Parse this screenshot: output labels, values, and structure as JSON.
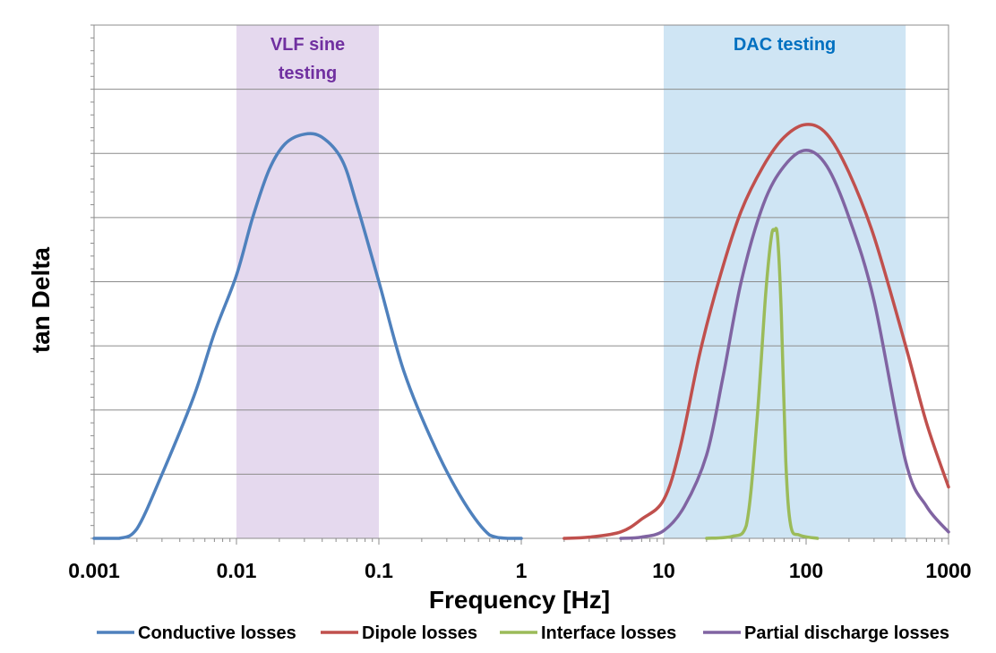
{
  "chart_data": {
    "type": "line",
    "xlabel": "Frequency [Hz]",
    "ylabel": "tan Delta",
    "x_scale": "log",
    "xlim": [
      0.001,
      1000
    ],
    "ylim": [
      0,
      8
    ],
    "x_tick_labels": [
      "0.001",
      "0.01",
      "0.1",
      "1",
      "10",
      "100",
      "1000"
    ],
    "x_ticks": [
      0.001,
      0.01,
      0.1,
      1,
      10,
      100,
      1000
    ],
    "y_gridlines": [
      1,
      2,
      3,
      4,
      5,
      6,
      7
    ],
    "grid": true,
    "legend_position": "bottom",
    "bands": [
      {
        "label_line1": "VLF sine",
        "label_line2": "testing",
        "x_range": [
          0.01,
          0.1
        ],
        "color": "#e5d9ee",
        "text_color": "#7030a0"
      },
      {
        "label_line1": "DAC testing",
        "label_line2": "",
        "x_range": [
          10,
          500
        ],
        "color": "#cfe5f4",
        "text_color": "#0070c0"
      }
    ],
    "series": [
      {
        "name": "Conductive losses",
        "color": "#4f81bd",
        "points": [
          [
            0.001,
            0
          ],
          [
            0.0015,
            0
          ],
          [
            0.002,
            0.15
          ],
          [
            0.003,
            1.0
          ],
          [
            0.005,
            2.2
          ],
          [
            0.007,
            3.2
          ],
          [
            0.01,
            4.1
          ],
          [
            0.013,
            5.0
          ],
          [
            0.017,
            5.75
          ],
          [
            0.022,
            6.15
          ],
          [
            0.03,
            6.3
          ],
          [
            0.04,
            6.25
          ],
          [
            0.055,
            5.9
          ],
          [
            0.07,
            5.2
          ],
          [
            0.1,
            4.0
          ],
          [
            0.15,
            2.6
          ],
          [
            0.25,
            1.4
          ],
          [
            0.4,
            0.55
          ],
          [
            0.6,
            0.05
          ],
          [
            0.8,
            0
          ],
          [
            1,
            0
          ]
        ]
      },
      {
        "name": "Dipole losses",
        "color": "#c0504d",
        "points": [
          [
            2,
            0
          ],
          [
            3,
            0.02
          ],
          [
            5,
            0.1
          ],
          [
            7,
            0.3
          ],
          [
            10,
            0.6
          ],
          [
            13,
            1.4
          ],
          [
            18,
            2.9
          ],
          [
            25,
            4.1
          ],
          [
            35,
            5.1
          ],
          [
            50,
            5.8
          ],
          [
            70,
            6.25
          ],
          [
            100,
            6.45
          ],
          [
            140,
            6.3
          ],
          [
            200,
            5.7
          ],
          [
            300,
            4.7
          ],
          [
            500,
            3.0
          ],
          [
            700,
            1.8
          ],
          [
            1000,
            0.8
          ]
        ]
      },
      {
        "name": "Interface losses",
        "color": "#9bbb59",
        "points": [
          [
            20,
            0
          ],
          [
            30,
            0.03
          ],
          [
            38,
            0.2
          ],
          [
            45,
            1.8
          ],
          [
            52,
            3.8
          ],
          [
            57,
            4.7
          ],
          [
            60,
            4.8
          ],
          [
            63,
            4.7
          ],
          [
            67,
            3.5
          ],
          [
            72,
            1.2
          ],
          [
            78,
            0.2
          ],
          [
            90,
            0.05
          ],
          [
            120,
            0
          ]
        ]
      },
      {
        "name": "Partial discharge losses",
        "color": "#8064a2",
        "points": [
          [
            5,
            0
          ],
          [
            7,
            0.02
          ],
          [
            10,
            0.12
          ],
          [
            14,
            0.5
          ],
          [
            20,
            1.3
          ],
          [
            26,
            2.5
          ],
          [
            35,
            4.0
          ],
          [
            50,
            5.2
          ],
          [
            70,
            5.8
          ],
          [
            100,
            6.05
          ],
          [
            140,
            5.8
          ],
          [
            200,
            5.0
          ],
          [
            300,
            3.7
          ],
          [
            500,
            1.2
          ],
          [
            700,
            0.5
          ],
          [
            1000,
            0.1
          ]
        ]
      }
    ]
  }
}
